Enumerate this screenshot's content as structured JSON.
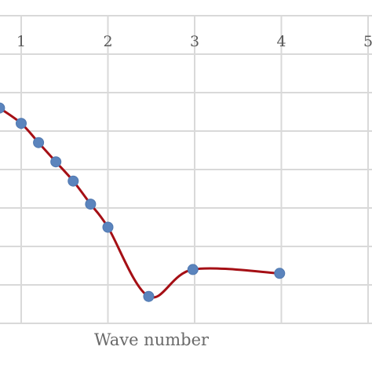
{
  "chart_data": {
    "type": "line",
    "xlabel": "Wave number",
    "ylabel": "",
    "title": "",
    "xlim": [
      0.75,
      5.0
    ],
    "ylim": [
      0.0,
      1.0
    ],
    "x_ticks": [
      1,
      2,
      3,
      4,
      5
    ],
    "x_tick_labels": [
      "1",
      "2",
      "3",
      "4",
      "5"
    ],
    "y_gridlines": [
      0.0,
      0.1,
      0.2,
      0.3,
      0.4,
      0.5,
      0.6,
      0.7,
      0.8
    ],
    "grid": true,
    "smooth": true,
    "series": [
      {
        "color": "#a50f15",
        "marker_color": "#5b84bd",
        "points": [
          {
            "x": 0.75,
            "y": 0.56
          },
          {
            "x": 1.0,
            "y": 0.52
          },
          {
            "x": 1.2,
            "y": 0.47
          },
          {
            "x": 1.4,
            "y": 0.42
          },
          {
            "x": 1.6,
            "y": 0.37
          },
          {
            "x": 1.8,
            "y": 0.31
          },
          {
            "x": 2.0,
            "y": 0.25
          },
          {
            "x": 2.47,
            "y": 0.07
          },
          {
            "x": 2.98,
            "y": 0.14
          },
          {
            "x": 3.98,
            "y": 0.13
          }
        ]
      }
    ]
  }
}
